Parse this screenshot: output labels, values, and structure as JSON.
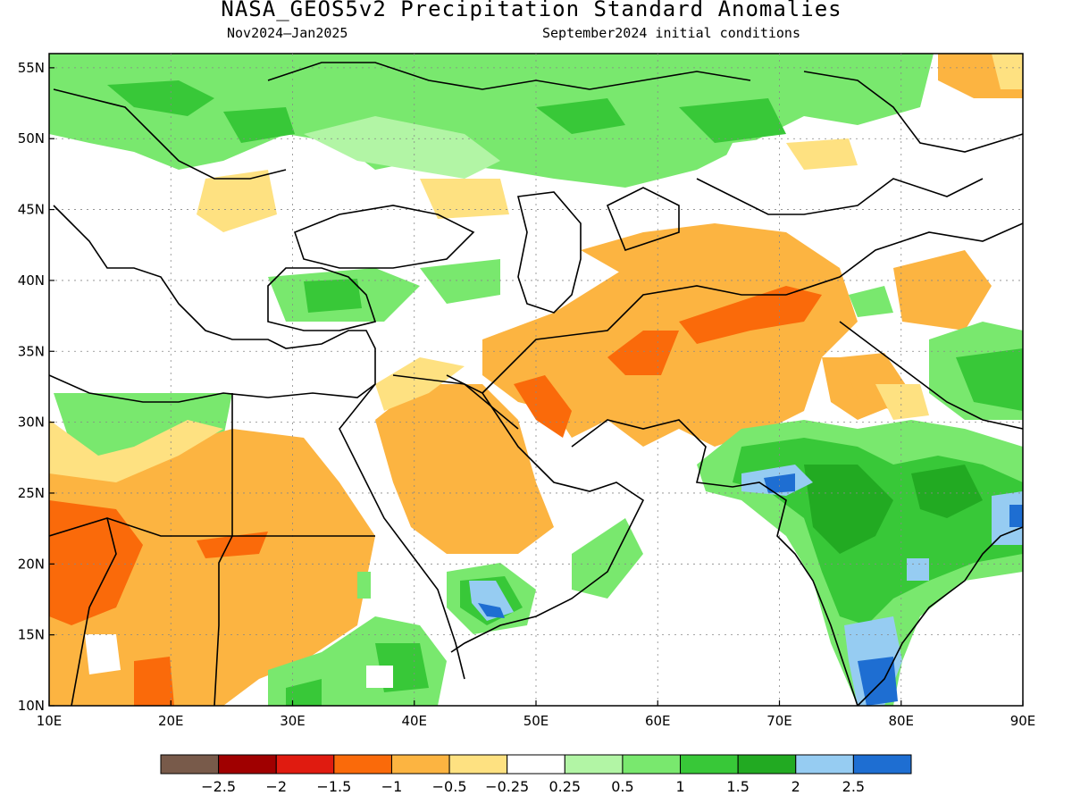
{
  "header": {
    "title": "NASA_GEOS5v2 Precipitation Standard Anomalies",
    "period": "Nov2024–Jan2025",
    "init": "September2024 initial conditions"
  },
  "map": {
    "lon_range": [
      10,
      90
    ],
    "lat_range": [
      10,
      56
    ],
    "lon_ticks": [
      "10E",
      "20E",
      "30E",
      "40E",
      "50E",
      "60E",
      "70E",
      "80E",
      "90E"
    ],
    "lat_ticks": [
      "10N",
      "15N",
      "20N",
      "25N",
      "30N",
      "35N",
      "40N",
      "45N",
      "50N",
      "55N"
    ],
    "gridlines": true
  },
  "colorbar": {
    "labels": [
      "−2.5",
      "−2",
      "−1.5",
      "−1",
      "−0.5",
      "−0.25",
      "0.25",
      "0.5",
      "1",
      "1.5",
      "2",
      "2.5"
    ],
    "colors": [
      "#785a4a",
      "#a00000",
      "#e01b10",
      "#fa6a0a",
      "#fcb441",
      "#fee181",
      "#ffffff",
      "#b2f5a5",
      "#79e86e",
      "#38c838",
      "#22aa22",
      "#96ccf2",
      "#1e6ed2"
    ]
  }
}
